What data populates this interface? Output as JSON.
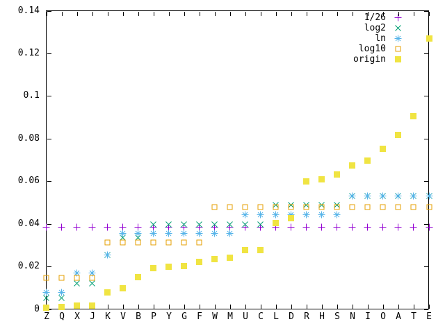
{
  "chart_data": {
    "type": "scatter",
    "title": "",
    "xlabel": "",
    "ylabel": "",
    "grid": "off",
    "legend_position": "top-right-inside",
    "ylim": [
      0,
      0.14
    ],
    "yticks": [
      0,
      0.02,
      0.04,
      0.06,
      0.08,
      0.1,
      0.12,
      0.14
    ],
    "ytick_labels": [
      "0",
      "0.02",
      "0.04",
      "0.06",
      "0.08",
      "0.1",
      "0.12",
      "0.14"
    ],
    "categories": [
      "Z",
      "Q",
      "X",
      "J",
      "K",
      "V",
      "B",
      "P",
      "Y",
      "G",
      "F",
      "W",
      "M",
      "U",
      "C",
      "L",
      "D",
      "R",
      "H",
      "S",
      "N",
      "I",
      "O",
      "A",
      "T",
      "E"
    ],
    "series": [
      {
        "name": "1/26",
        "marker": "plus",
        "color": "#9400d3",
        "values": [
          0.03846,
          0.03846,
          0.03846,
          0.03846,
          0.03846,
          0.03846,
          0.03846,
          0.03846,
          0.03846,
          0.03846,
          0.03846,
          0.03846,
          0.03846,
          0.03846,
          0.03846,
          0.03846,
          0.03846,
          0.03846,
          0.03846,
          0.03846,
          0.03846,
          0.03846,
          0.03846,
          0.03846,
          0.03846,
          0.03846
        ]
      },
      {
        "name": "log2",
        "marker": "cross",
        "color": "#009e73",
        "values": [
          0.0053,
          0.0053,
          0.0119,
          0.0119,
          0.0255,
          0.0336,
          0.0336,
          0.0397,
          0.0397,
          0.0397,
          0.0397,
          0.0397,
          0.0397,
          0.0397,
          0.0397,
          0.0488,
          0.0488,
          0.0488,
          0.0488,
          0.0488,
          0.0531,
          0.0531,
          0.0531,
          0.0531,
          0.0531,
          0.0531
        ]
      },
      {
        "name": "ln",
        "marker": "asterisk",
        "color": "#56b4e9",
        "values": [
          0.0077,
          0.0077,
          0.0168,
          0.0168,
          0.0255,
          0.0355,
          0.0355,
          0.0355,
          0.0355,
          0.0355,
          0.0355,
          0.0355,
          0.0355,
          0.0444,
          0.0444,
          0.0444,
          0.0444,
          0.0444,
          0.0444,
          0.0444,
          0.0531,
          0.0531,
          0.0531,
          0.0531,
          0.0531,
          0.0531
        ]
      },
      {
        "name": "log10",
        "marker": "open-square",
        "color": "#e69f00",
        "values": [
          0.0147,
          0.0147,
          0.0147,
          0.0147,
          0.0311,
          0.0311,
          0.0311,
          0.0311,
          0.0311,
          0.0311,
          0.0311,
          0.048,
          0.048,
          0.048,
          0.048,
          0.048,
          0.048,
          0.048,
          0.048,
          0.048,
          0.048,
          0.048,
          0.048,
          0.048,
          0.048,
          0.048
        ]
      },
      {
        "name": "origin",
        "marker": "filled-square",
        "color": "#f0e442",
        "values": [
          0.00074,
          0.00095,
          0.0015,
          0.00153,
          0.00772,
          0.00978,
          0.01492,
          0.01929,
          0.01974,
          0.02015,
          0.02228,
          0.0236,
          0.02406,
          0.02758,
          0.02782,
          0.04025,
          0.04253,
          0.05987,
          0.06094,
          0.06327,
          0.06749,
          0.06966,
          0.07507,
          0.08167,
          0.09056,
          0.12702
        ]
      }
    ]
  }
}
